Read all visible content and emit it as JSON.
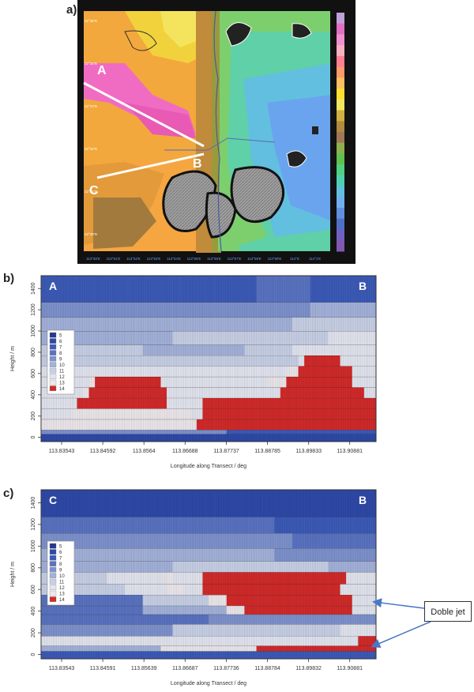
{
  "panels": {
    "a": "a)",
    "b": "b)",
    "c": "c)"
  },
  "map": {
    "transect_labels": [
      "A",
      "B",
      "C"
    ],
    "colorbar_colors": [
      "#c0a0d8",
      "#e070c0",
      "#f090d0",
      "#f8b0c0",
      "#ff8090",
      "#ff9a6a",
      "#ffc060",
      "#ffe030",
      "#f0e860",
      "#d0b040",
      "#b08a40",
      "#a07858",
      "#90b050",
      "#60c050",
      "#50d080",
      "#50d0b0",
      "#60c0e0",
      "#70b0f0",
      "#6090e0",
      "#5070c8",
      "#7060c0",
      "#8058b0"
    ],
    "grid_lon_labels": [
      "113°50'E",
      "113°51'E",
      "113°52'E",
      "113°53'E",
      "113°54'E",
      "113°55'E",
      "113°56'E",
      "113°57'E",
      "113°58'E",
      "113°59'E",
      "114°E",
      "114°1'E"
    ],
    "grid_lat_labels": [
      "22°35'N",
      "22°34'N",
      "22°33'N",
      "22°32'N",
      "22°31'N",
      "22°30'N"
    ]
  },
  "annotation": {
    "label": "Doble jet"
  },
  "chart_data": [
    {
      "type": "heatmap",
      "title": "",
      "section_start": "A",
      "section_end": "B",
      "xlabel": "Longitude along Transect / deg",
      "ylabel": "Height / m",
      "x_ticks": [
        "113.83543",
        "113.84592",
        "113.8564",
        "113.86688",
        "113.87737",
        "113.88785",
        "113.89833",
        "113.90881"
      ],
      "y_ticks": [
        0,
        200,
        400,
        600,
        800,
        1000,
        1200,
        1400
      ],
      "xlim": [
        113.8302,
        113.9155
      ],
      "ylim": [
        -40,
        1520
      ],
      "legend": {
        "placement": "upper-left",
        "levels": [
          5,
          6,
          7,
          8,
          9,
          10,
          11,
          12,
          13,
          14
        ]
      },
      "level_colors": [
        "#26378e",
        "#2e49a8",
        "#3c5bb8",
        "#5a73c2",
        "#7e92cd",
        "#a4b2da",
        "#c8d0e6",
        "#e2e5ef",
        "#ece7eb",
        "#d22a2a"
      ],
      "rows": [
        {
          "y0": -40,
          "y1": 30,
          "stops": [
            [
              0,
              1
            ],
            [
              1,
              1
            ]
          ]
        },
        {
          "y0": 30,
          "y1": 70,
          "stops": [
            [
              0,
              4
            ],
            [
              0.5,
              4
            ],
            [
              0.55,
              2
            ],
            [
              1,
              2
            ]
          ]
        },
        {
          "y0": 70,
          "y1": 170,
          "stops": [
            [
              0,
              8
            ],
            [
              0.4,
              8
            ],
            [
              0.46,
              9
            ],
            [
              1,
              9
            ]
          ]
        },
        {
          "y0": 170,
          "y1": 270,
          "stops": [
            [
              0,
              7
            ],
            [
              0.09,
              8
            ],
            [
              0.45,
              7
            ],
            [
              0.48,
              9
            ],
            [
              1,
              9
            ]
          ]
        },
        {
          "y0": 270,
          "y1": 370,
          "stops": [
            [
              0,
              7
            ],
            [
              0.1,
              9
            ],
            [
              0.34,
              9
            ],
            [
              0.38,
              7
            ],
            [
              0.49,
              9
            ],
            [
              1,
              9
            ]
          ]
        },
        {
          "y0": 370,
          "y1": 470,
          "stops": [
            [
              0,
              7
            ],
            [
              0.12,
              8
            ],
            [
              0.14,
              9
            ],
            [
              0.33,
              9
            ],
            [
              0.37,
              7
            ],
            [
              0.66,
              7
            ],
            [
              0.72,
              9
            ],
            [
              0.9,
              9
            ],
            [
              0.96,
              7
            ],
            [
              1,
              7
            ]
          ]
        },
        {
          "y0": 470,
          "y1": 570,
          "stops": [
            [
              0,
              7
            ],
            [
              0.14,
              8
            ],
            [
              0.16,
              9
            ],
            [
              0.32,
              9
            ],
            [
              0.36,
              7
            ],
            [
              0.68,
              8
            ],
            [
              0.74,
              9
            ],
            [
              0.86,
              9
            ],
            [
              0.92,
              7
            ],
            [
              1,
              7
            ]
          ]
        },
        {
          "y0": 570,
          "y1": 670,
          "stops": [
            [
              0,
              7
            ],
            [
              0.74,
              8
            ],
            [
              0.77,
              9
            ],
            [
              0.86,
              9
            ],
            [
              0.92,
              7
            ],
            [
              1,
              7
            ]
          ]
        },
        {
          "y0": 670,
          "y1": 770,
          "stops": [
            [
              0,
              6
            ],
            [
              0.76,
              7
            ],
            [
              0.78,
              9
            ],
            [
              0.85,
              9
            ],
            [
              0.9,
              7
            ],
            [
              1,
              7
            ]
          ]
        },
        {
          "y0": 770,
          "y1": 870,
          "stops": [
            [
              0,
              6
            ],
            [
              0.3,
              5
            ],
            [
              0.6,
              6
            ],
            [
              0.75,
              7
            ],
            [
              1,
              7
            ]
          ]
        },
        {
          "y0": 870,
          "y1": 1000,
          "stops": [
            [
              0,
              5
            ],
            [
              0.4,
              6
            ],
            [
              0.7,
              6
            ],
            [
              0.85,
              7
            ],
            [
              1,
              7
            ]
          ]
        },
        {
          "y0": 1000,
          "y1": 1130,
          "stops": [
            [
              0,
              5
            ],
            [
              0.4,
              5
            ],
            [
              0.75,
              6
            ],
            [
              1,
              6
            ]
          ]
        },
        {
          "y0": 1130,
          "y1": 1270,
          "stops": [
            [
              0,
              4
            ],
            [
              0.5,
              4
            ],
            [
              0.8,
              5
            ],
            [
              1,
              5
            ]
          ]
        },
        {
          "y0": 1270,
          "y1": 1520,
          "stops": [
            [
              0,
              2
            ],
            [
              0.55,
              2
            ],
            [
              0.65,
              3
            ],
            [
              0.72,
              3
            ],
            [
              0.8,
              2
            ],
            [
              1,
              2
            ]
          ]
        }
      ]
    },
    {
      "type": "heatmap",
      "title": "",
      "section_start": "C",
      "section_end": "B",
      "xlabel": "Longitude along Transect / deg",
      "ylabel": "Height / m",
      "x_ticks": [
        "113.83543",
        "113.84591",
        "113.85639",
        "113.86687",
        "113.87736",
        "113.88784",
        "113.89832",
        "113.90881"
      ],
      "y_ticks": [
        0,
        200,
        400,
        600,
        800,
        1000,
        1200,
        1400
      ],
      "xlim": [
        113.8302,
        113.9155
      ],
      "ylim": [
        -40,
        1520
      ],
      "legend": {
        "placement": "upper-left",
        "levels": [
          5,
          6,
          7,
          8,
          9,
          10,
          11,
          12,
          13,
          14
        ]
      },
      "level_colors": [
        "#26378e",
        "#2e49a8",
        "#3c5bb8",
        "#5a73c2",
        "#7e92cd",
        "#a4b2da",
        "#c8d0e6",
        "#e2e5ef",
        "#ece7eb",
        "#d22a2a"
      ],
      "rows": [
        {
          "y0": -40,
          "y1": 30,
          "stops": [
            [
              0,
              2
            ],
            [
              1,
              2
            ]
          ]
        },
        {
          "y0": 30,
          "y1": 80,
          "stops": [
            [
              0,
              5
            ],
            [
              0.35,
              8
            ],
            [
              0.6,
              8
            ],
            [
              0.64,
              9
            ],
            [
              1,
              9
            ]
          ]
        },
        {
          "y0": 80,
          "y1": 170,
          "stops": [
            [
              0,
              7
            ],
            [
              0.9,
              7
            ],
            [
              0.94,
              9
            ],
            [
              1,
              9
            ]
          ]
        },
        {
          "y0": 170,
          "y1": 280,
          "stops": [
            [
              0,
              4
            ],
            [
              0.4,
              6
            ],
            [
              0.9,
              7
            ],
            [
              1,
              7
            ]
          ]
        },
        {
          "y0": 280,
          "y1": 370,
          "stops": [
            [
              0,
              3
            ],
            [
              0.5,
              4
            ],
            [
              1,
              5
            ]
          ]
        },
        {
          "y0": 370,
          "y1": 450,
          "stops": [
            [
              0,
              3
            ],
            [
              0.3,
              5
            ],
            [
              0.55,
              8
            ],
            [
              0.6,
              9
            ],
            [
              0.88,
              9
            ],
            [
              0.93,
              7
            ],
            [
              1,
              7
            ]
          ]
        },
        {
          "y0": 450,
          "y1": 550,
          "stops": [
            [
              0,
              3
            ],
            [
              0.3,
              6
            ],
            [
              0.5,
              8
            ],
            [
              0.55,
              9
            ],
            [
              0.88,
              9
            ],
            [
              0.92,
              7
            ],
            [
              1,
              7
            ]
          ]
        },
        {
          "y0": 550,
          "y1": 650,
          "stops": [
            [
              0,
              6
            ],
            [
              0.25,
              7
            ],
            [
              0.38,
              8
            ],
            [
              0.42,
              7
            ],
            [
              0.49,
              9
            ],
            [
              0.86,
              9
            ],
            [
              0.9,
              7
            ],
            [
              1,
              7
            ]
          ]
        },
        {
          "y0": 650,
          "y1": 760,
          "stops": [
            [
              0,
              6
            ],
            [
              0.2,
              7
            ],
            [
              0.37,
              8
            ],
            [
              0.4,
              7
            ],
            [
              0.48,
              9
            ],
            [
              0.86,
              9
            ],
            [
              0.91,
              7
            ],
            [
              1,
              7
            ]
          ]
        },
        {
          "y0": 760,
          "y1": 860,
          "stops": [
            [
              0,
              5
            ],
            [
              0.4,
              6
            ],
            [
              0.7,
              6
            ],
            [
              0.85,
              5
            ],
            [
              1,
              5
            ]
          ]
        },
        {
          "y0": 860,
          "y1": 980,
          "stops": [
            [
              0,
              5
            ],
            [
              0.5,
              5
            ],
            [
              0.7,
              4
            ],
            [
              1,
              4
            ]
          ]
        },
        {
          "y0": 980,
          "y1": 1120,
          "stops": [
            [
              0,
              4
            ],
            [
              0.6,
              4
            ],
            [
              0.75,
              3
            ],
            [
              1,
              3
            ]
          ]
        },
        {
          "y0": 1120,
          "y1": 1270,
          "stops": [
            [
              0,
              3
            ],
            [
              0.55,
              3
            ],
            [
              0.7,
              2
            ],
            [
              1,
              2
            ]
          ]
        },
        {
          "y0": 1270,
          "y1": 1520,
          "stops": [
            [
              0,
              1
            ],
            [
              1,
              1
            ]
          ]
        }
      ]
    }
  ]
}
